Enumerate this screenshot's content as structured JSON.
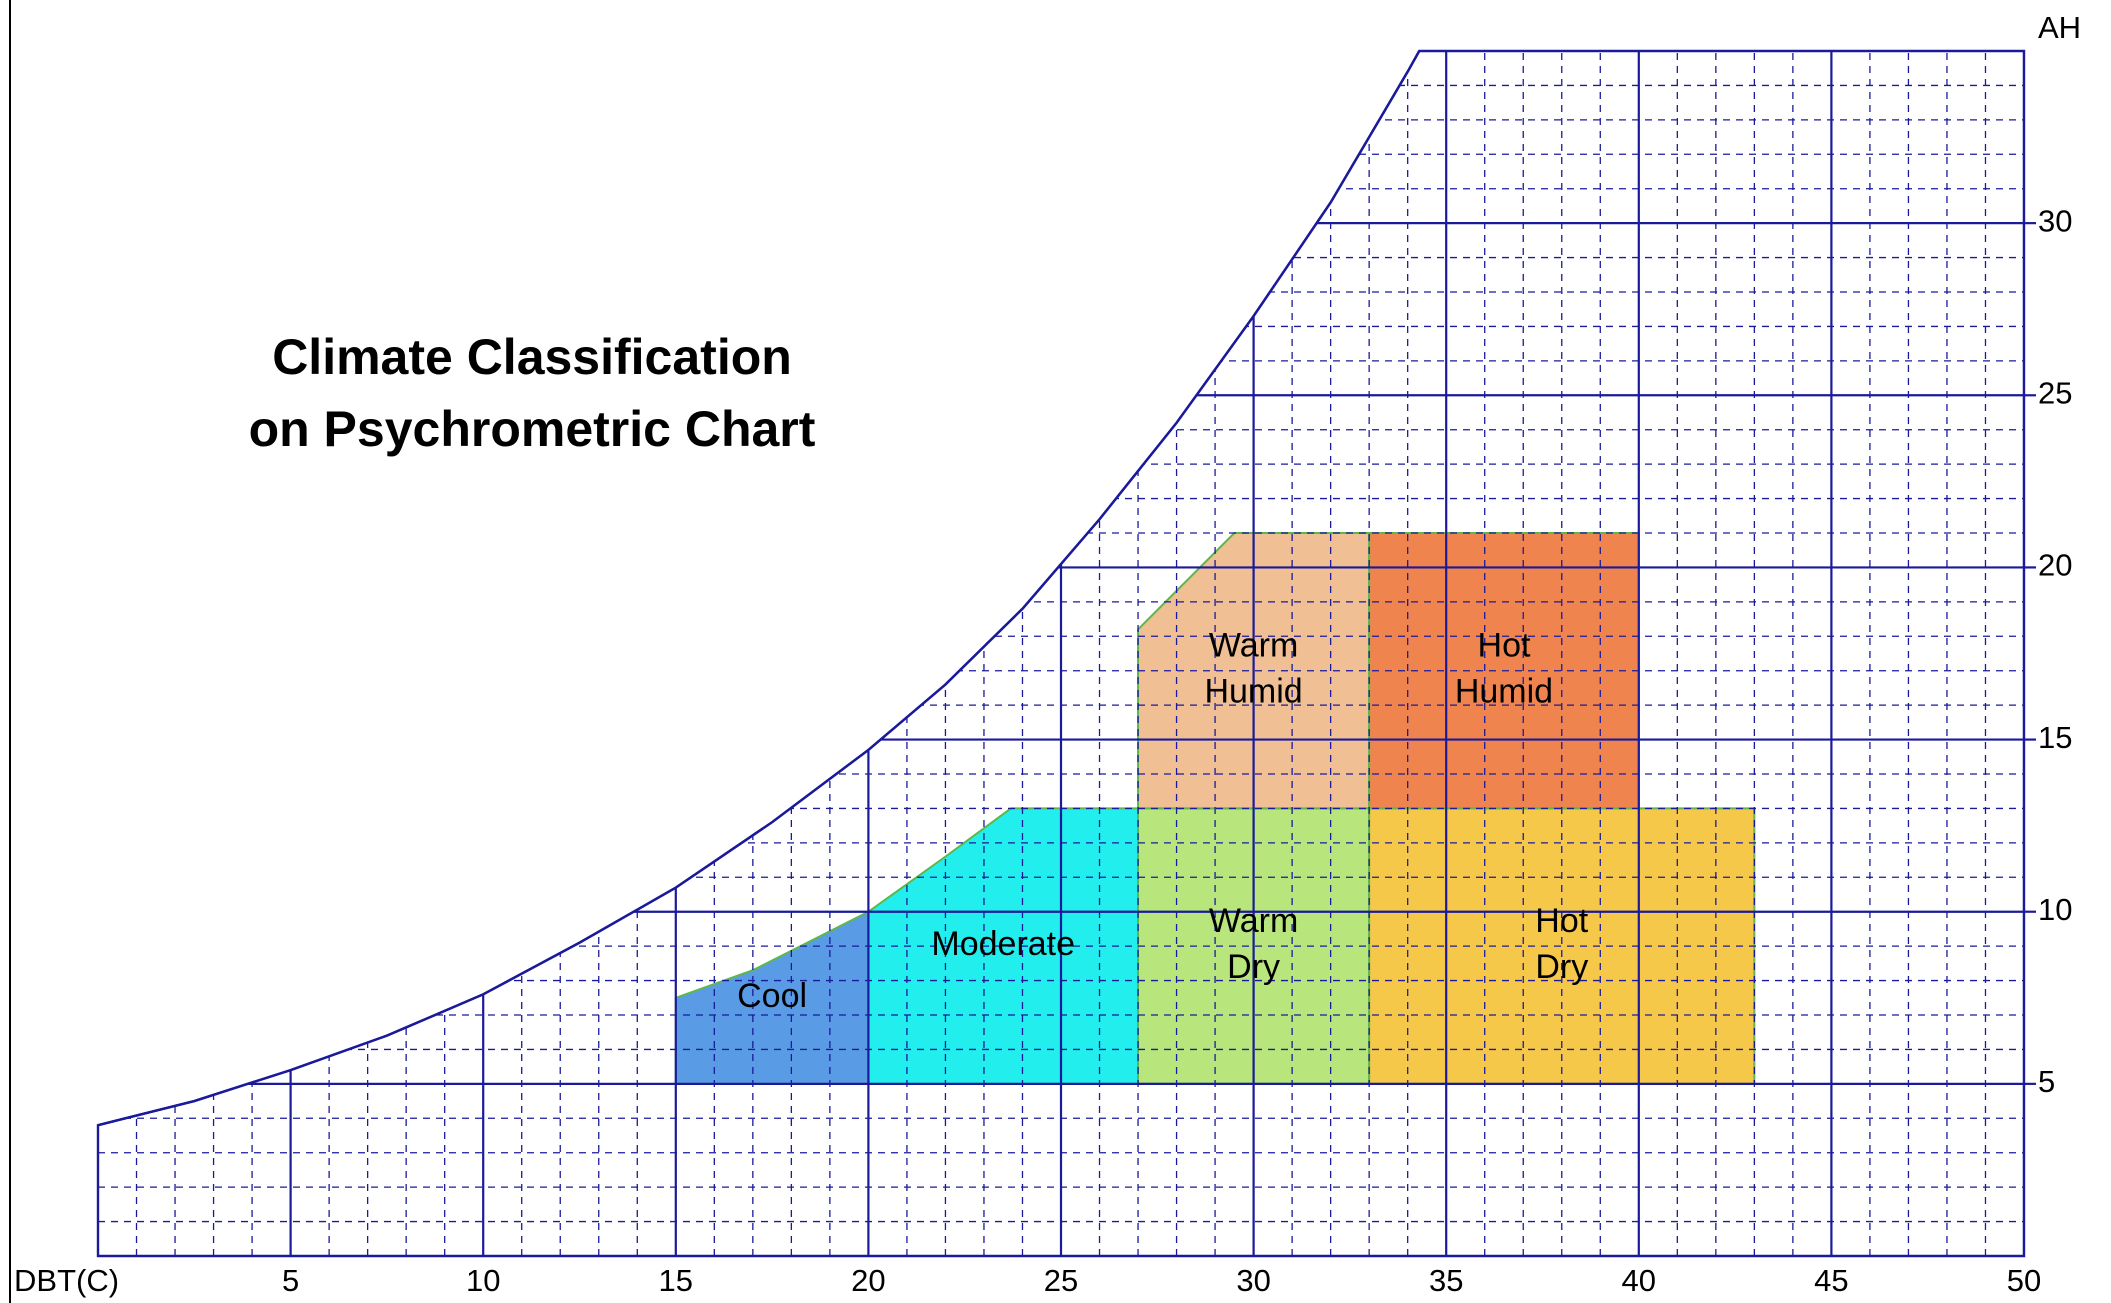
{
  "chart_data": {
    "type": "psychrometric",
    "title_lines": [
      "Climate Classification",
      "on Psychrometric Chart"
    ],
    "x_label": "DBT(C)",
    "y_label": "AH",
    "xlim": [
      0,
      50
    ],
    "ylim": [
      0,
      35
    ],
    "xticks": [
      5,
      10,
      15,
      20,
      25,
      30,
      35,
      40,
      45,
      50
    ],
    "yticks": [
      5,
      10,
      15,
      20,
      25,
      30
    ],
    "xminor": [
      1,
      2,
      3,
      4,
      6,
      7,
      8,
      9,
      11,
      12,
      13,
      14,
      16,
      17,
      18,
      19,
      21,
      22,
      23,
      24,
      26,
      27,
      28,
      29,
      31,
      32,
      33,
      34,
      36,
      37,
      38,
      39,
      41,
      42,
      43,
      44,
      46,
      47,
      48,
      49
    ],
    "yminor": [
      1,
      2,
      3,
      4,
      6,
      7,
      8,
      9,
      11,
      12,
      13,
      14,
      16,
      17,
      18,
      19,
      21,
      22,
      23,
      24,
      26,
      27,
      28,
      29,
      31,
      32,
      33,
      34
    ],
    "grid_color": "#1a1a9a",
    "saturation_curve": {
      "x": [
        0,
        2.5,
        5,
        7.5,
        10,
        12.5,
        15,
        17.5,
        20,
        22,
        24,
        26,
        28,
        30,
        32,
        34,
        34.3
      ],
      "values": [
        3.8,
        4.5,
        5.4,
        6.4,
        7.6,
        9.1,
        10.7,
        12.6,
        14.7,
        16.6,
        18.8,
        21.4,
        24.2,
        27.3,
        30.6,
        34.4,
        35
      ]
    },
    "zones": [
      {
        "lines": [
          "Cool"
        ],
        "color": "#5a9be6",
        "x": [
          15,
          20,
          20,
          17,
          15
        ],
        "values": [
          5,
          5,
          10,
          8.3,
          7.5
        ]
      },
      {
        "lines": [
          "Moderate"
        ],
        "color": "#22eeee",
        "x": [
          20,
          27,
          27,
          23.7,
          22,
          20
        ],
        "values": [
          5,
          5,
          13,
          13,
          11.6,
          10
        ]
      },
      {
        "lines": [
          "Warm",
          "Dry"
        ],
        "color": "#b8e67c",
        "x": [
          27,
          33,
          33,
          27
        ],
        "values": [
          5,
          5,
          13,
          13
        ]
      },
      {
        "lines": [
          "Hot",
          "Dry"
        ],
        "color": "#f6c84a",
        "x": [
          33,
          43,
          43,
          33
        ],
        "values": [
          5,
          5,
          13,
          13
        ]
      },
      {
        "lines": [
          "Warm",
          "Humid"
        ],
        "color": "#f0bf94",
        "x": [
          27,
          33,
          33,
          29.5,
          27
        ],
        "values": [
          13,
          13,
          21,
          21,
          18.2
        ]
      },
      {
        "lines": [
          "Hot",
          "Humid"
        ],
        "color": "#f0844e",
        "x": [
          33,
          40,
          40,
          33
        ],
        "values": [
          13,
          13,
          21,
          21
        ]
      }
    ]
  }
}
